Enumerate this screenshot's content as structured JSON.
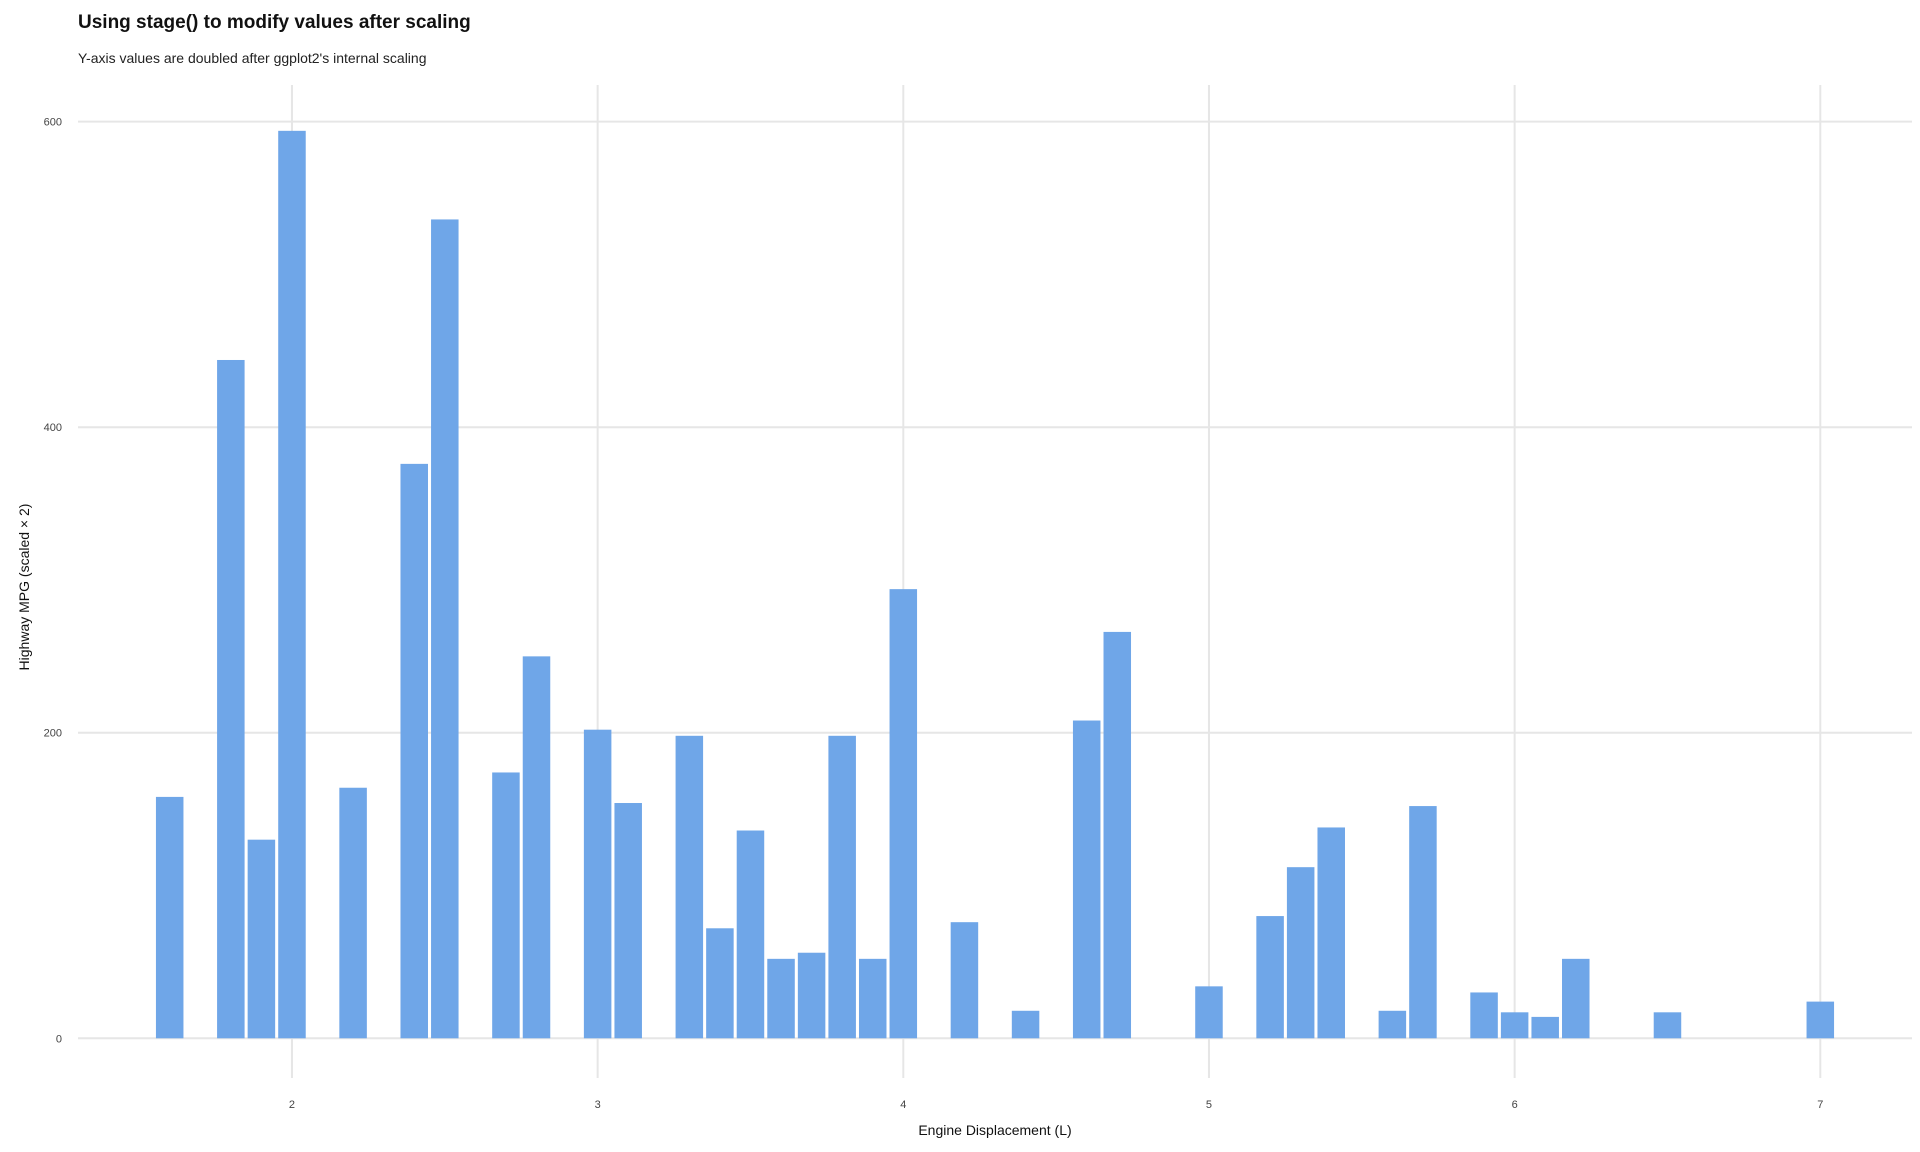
{
  "chart_data": {
    "type": "bar",
    "title": "Using stage() to modify values after scaling",
    "subtitle": "Y-axis values are doubled after ggplot2's internal scaling",
    "xlabel": "Engine Displacement (L)",
    "ylabel": "Highway MPG (scaled × 2)",
    "xlim": [
      1.3,
      7.3
    ],
    "ylim": [
      -26,
      624
    ],
    "x_ticks": [
      2,
      3,
      4,
      5,
      6,
      7
    ],
    "y_ticks": [
      0,
      200,
      400,
      600
    ],
    "bar_width": 0.09,
    "bar_color": "#6fa6e8",
    "grid": true,
    "legend": "none",
    "x": [
      1.6,
      1.8,
      1.9,
      2.0,
      2.2,
      2.4,
      2.5,
      2.7,
      2.8,
      3.0,
      3.1,
      3.3,
      3.4,
      3.5,
      3.6,
      3.7,
      3.8,
      3.9,
      4.0,
      4.2,
      4.4,
      4.6,
      4.7,
      5.0,
      5.2,
      5.3,
      5.4,
      5.6,
      5.7,
      5.9,
      6.0,
      6.1,
      6.2,
      6.5,
      7.0
    ],
    "values": [
      158,
      444,
      130,
      594,
      164,
      376,
      536,
      174,
      250,
      202,
      154,
      198,
      72,
      136,
      52,
      56,
      198,
      52,
      294,
      76,
      18,
      208,
      266,
      34,
      80,
      112,
      138,
      18,
      152,
      30,
      17,
      14,
      52,
      17,
      24
    ]
  }
}
